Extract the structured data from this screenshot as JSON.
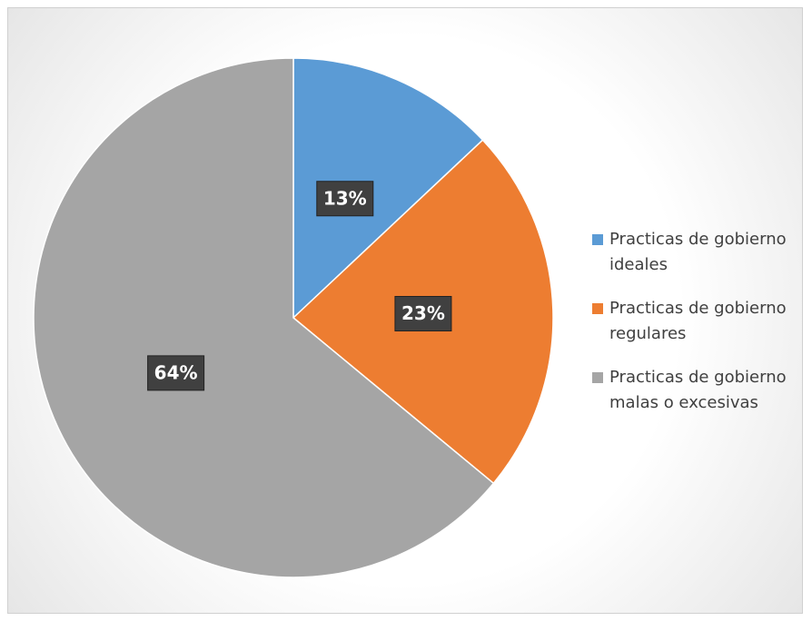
{
  "chart_data": {
    "type": "pie",
    "categories": [
      "Practicas de gobierno ideales",
      "Practicas de gobierno regulares",
      "Practicas de gobierno malas o excesivas"
    ],
    "values": [
      13,
      23,
      64
    ],
    "value_labels": [
      "13%",
      "23%",
      "64%"
    ],
    "colors": [
      "#5b9bd5",
      "#ed7d31",
      "#a5a5a5"
    ],
    "legend": "right"
  }
}
